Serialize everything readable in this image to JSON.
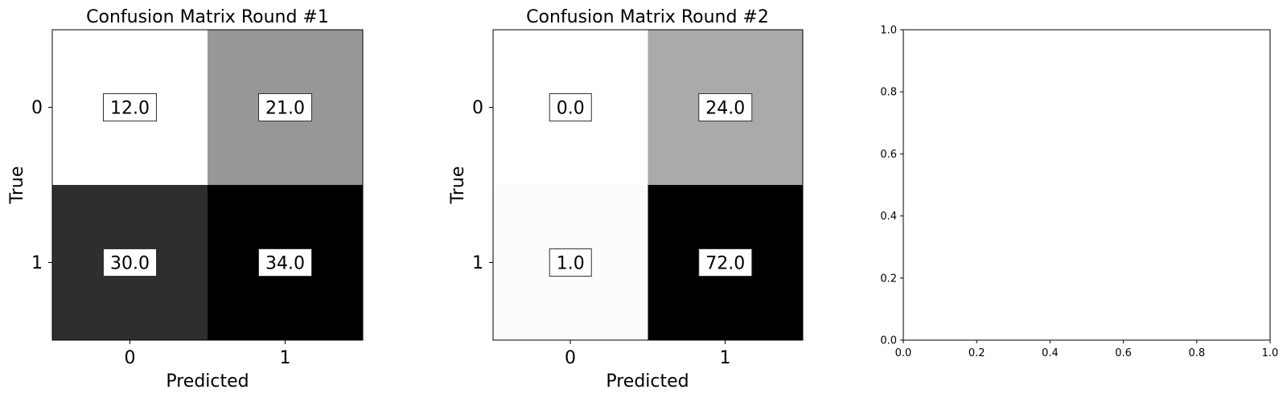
{
  "chart_data": [
    {
      "type": "heatmap",
      "title": "Confusion Matrix Round #1",
      "xlabel": "Predicted",
      "ylabel": "True",
      "x_categories": [
        "0",
        "1"
      ],
      "y_categories": [
        "0",
        "1"
      ],
      "values": [
        [
          12.0,
          21.0
        ],
        [
          30.0,
          34.0
        ]
      ],
      "value_labels": [
        [
          "12.0",
          "21.0"
        ],
        [
          "30.0",
          "34.0"
        ]
      ],
      "colormap": "gray_r"
    },
    {
      "type": "heatmap",
      "title": "Confusion Matrix Round #2",
      "xlabel": "Predicted",
      "ylabel": "True",
      "x_categories": [
        "0",
        "1"
      ],
      "y_categories": [
        "0",
        "1"
      ],
      "values": [
        [
          0.0,
          24.0
        ],
        [
          1.0,
          72.0
        ]
      ],
      "value_labels": [
        [
          "0.0",
          "24.0"
        ],
        [
          "1.0",
          "72.0"
        ]
      ],
      "colormap": "gray_r"
    },
    {
      "type": "scatter",
      "title": "",
      "xlim": [
        0.0,
        1.0
      ],
      "ylim": [
        0.0,
        1.0
      ],
      "x_ticks": [
        "0.0",
        "0.2",
        "0.4",
        "0.6",
        "0.8",
        "1.0"
      ],
      "y_ticks": [
        "0.0",
        "0.2",
        "0.4",
        "0.6",
        "0.8",
        "1.0"
      ],
      "series": []
    }
  ]
}
